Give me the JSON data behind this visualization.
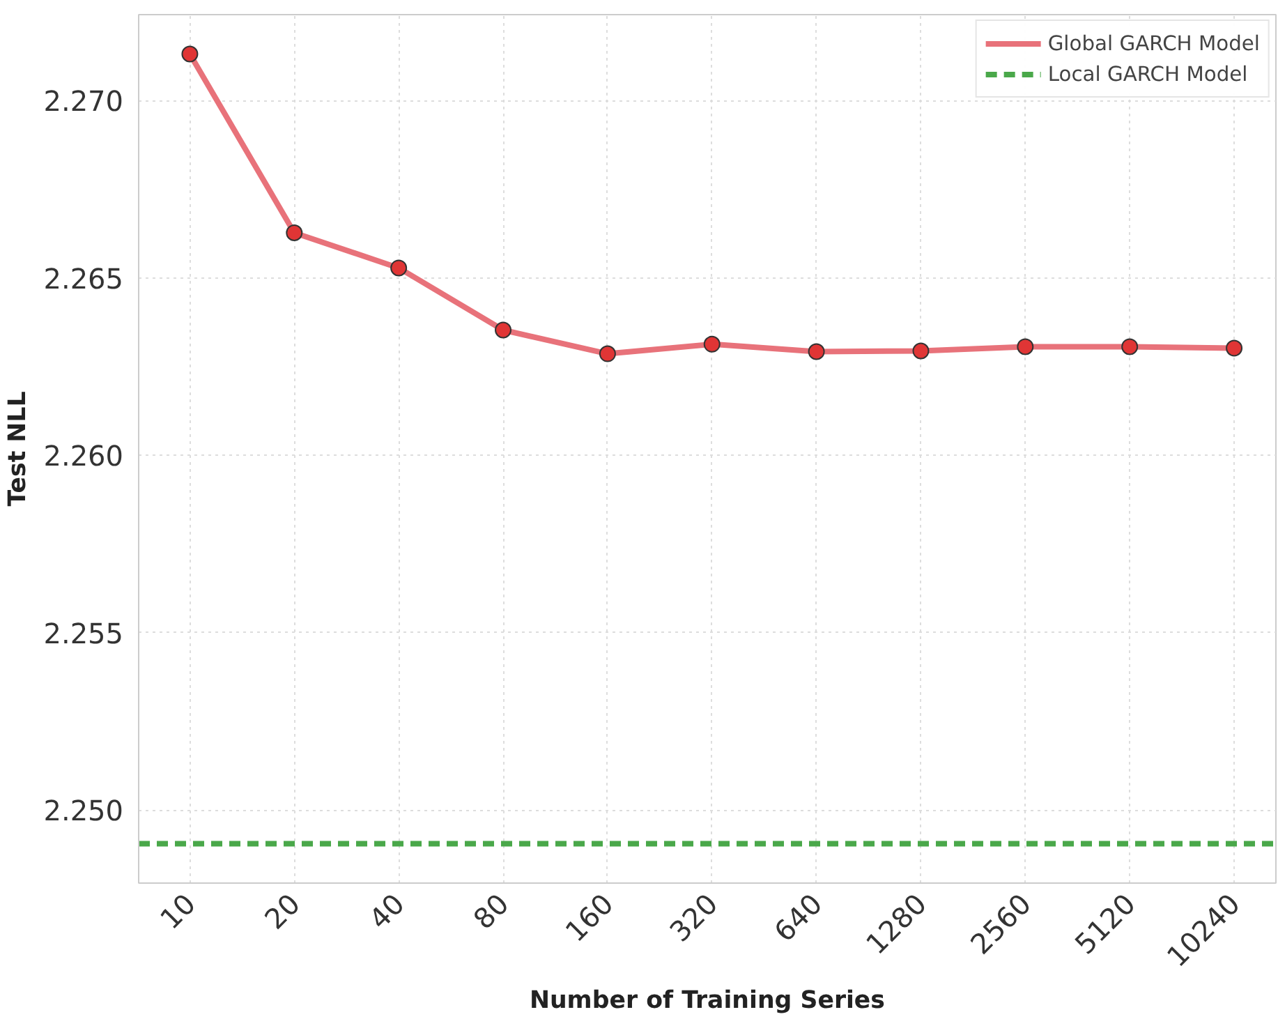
{
  "chart_data": {
    "type": "line",
    "xlabel": "Number of Training Series",
    "ylabel": "Test NLL",
    "categories": [
      "10",
      "20",
      "40",
      "80",
      "160",
      "320",
      "640",
      "1280",
      "2560",
      "5120",
      "10240"
    ],
    "series": [
      {
        "name": "Global GARCH Model",
        "color": "#e8727a",
        "values": [
          2.27131,
          2.26627,
          2.26528,
          2.26353,
          2.26286,
          2.26313,
          2.26292,
          2.26294,
          2.26306,
          2.26306,
          2.26302
        ]
      }
    ],
    "ref_lines": [
      {
        "axis": "y",
        "value": 2.24905,
        "label": "Local GARCH Model",
        "color": "#4aa84a",
        "line_style": "dashed"
      }
    ],
    "ylim": [
      2.24794,
      2.27242
    ],
    "yticks": [
      {
        "value": 2.25,
        "label": "2.250"
      },
      {
        "value": 2.255,
        "label": "2.255"
      },
      {
        "value": 2.26,
        "label": "2.260"
      },
      {
        "value": 2.265,
        "label": "2.265"
      },
      {
        "value": 2.27,
        "label": "2.270"
      }
    ],
    "grid": true,
    "legend": "top right",
    "marker": "circle",
    "line_style": "solid"
  }
}
